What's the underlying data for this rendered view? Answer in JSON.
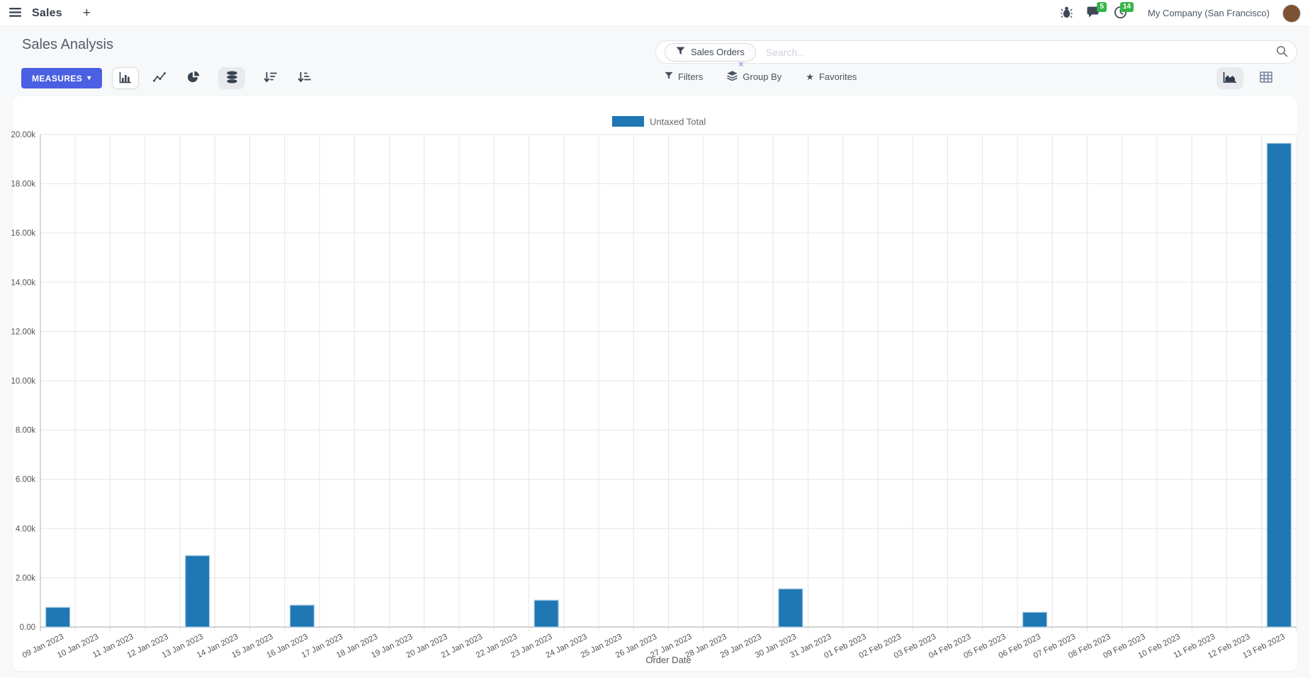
{
  "navbar": {
    "app_title": "Sales",
    "plus_label": "+",
    "messages_count": "5",
    "activities_count": "14",
    "company": "My Company (San Francisco)"
  },
  "control_panel": {
    "title": "Sales Analysis",
    "measures_label": "MEASURES",
    "measures_caret": "▾",
    "search": {
      "facet_label": "Sales Orders",
      "placeholder": "Search...",
      "remove_glyph": "×"
    },
    "filters_label": "Filters",
    "group_by_label": "Group By",
    "favorites_label": "Favorites",
    "favorites_star": "★"
  },
  "colors": {
    "accent": "#4b5fe2",
    "badge_green": "#35b547",
    "bar": "#1f77b4",
    "bar_border": "#a9cbe4"
  },
  "chart_data": {
    "type": "bar",
    "title": "",
    "xlabel": "Order Date",
    "ylabel": "",
    "legend_position": "top",
    "grid": true,
    "ylim": [
      0,
      20000
    ],
    "y_tick_step": 2000,
    "y_tick_labels": [
      "0.00",
      "2.00k",
      "4.00k",
      "6.00k",
      "8.00k",
      "10.00k",
      "12.00k",
      "14.00k",
      "16.00k",
      "18.00k",
      "20.00k"
    ],
    "categories": [
      "09 Jan 2023",
      "10 Jan 2023",
      "11 Jan 2023",
      "12 Jan 2023",
      "13 Jan 2023",
      "14 Jan 2023",
      "15 Jan 2023",
      "16 Jan 2023",
      "17 Jan 2023",
      "18 Jan 2023",
      "19 Jan 2023",
      "20 Jan 2023",
      "21 Jan 2023",
      "22 Jan 2023",
      "23 Jan 2023",
      "24 Jan 2023",
      "25 Jan 2023",
      "26 Jan 2023",
      "27 Jan 2023",
      "28 Jan 2023",
      "29 Jan 2023",
      "30 Jan 2023",
      "31 Jan 2023",
      "01 Feb 2023",
      "02 Feb 2023",
      "03 Feb 2023",
      "04 Feb 2023",
      "05 Feb 2023",
      "06 Feb 2023",
      "07 Feb 2023",
      "08 Feb 2023",
      "09 Feb 2023",
      "10 Feb 2023",
      "11 Feb 2023",
      "12 Feb 2023",
      "13 Feb 2023"
    ],
    "series": [
      {
        "name": "Untaxed Total",
        "color": "#1f77b4",
        "border_color": "#a9cbe4",
        "values": [
          800,
          0,
          0,
          0,
          2900,
          0,
          0,
          890,
          0,
          0,
          0,
          0,
          0,
          0,
          1090,
          0,
          0,
          0,
          0,
          0,
          0,
          1550,
          0,
          0,
          0,
          0,
          0,
          0,
          600,
          0,
          0,
          0,
          0,
          0,
          0,
          19640
        ]
      }
    ]
  }
}
